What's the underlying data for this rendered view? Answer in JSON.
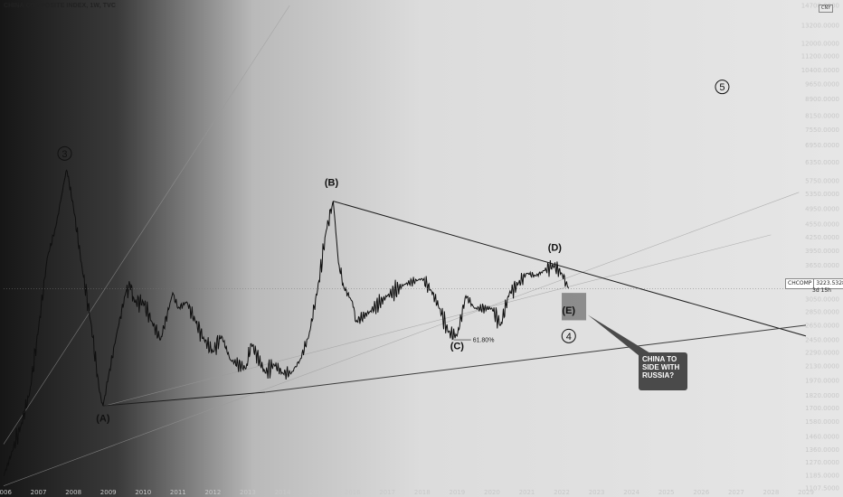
{
  "header": {
    "title": "CHINA COMPOSITE INDEX, 1W, TVC"
  },
  "price_tag": {
    "symbol": "CHCOMP",
    "value": "3223.5328",
    "countdown": "3d 15h"
  },
  "unit_badge": "CNY",
  "callout": {
    "lines": [
      "CHINA TO",
      "SIDE WITH",
      "RUSSIA?"
    ]
  },
  "fib_label": "61.80%",
  "wave_labels": {
    "A": "(A)",
    "B": "(B)",
    "C": "(C)",
    "D": "(D)",
    "E": "(E)",
    "w3": "3",
    "w4": "4",
    "w5": "5"
  },
  "colors": {
    "background_left": "#191919",
    "background_right": "#e4e4e4",
    "price_line": "#0f0f0f",
    "trendline": "#1e1e1e",
    "projection_box": "#7e7e7e",
    "callout_bg": "#4a4a4a"
  },
  "chart_data": {
    "type": "line",
    "title": "CHINA COMPOSITE INDEX, 1W, TVC",
    "y_scale": "log",
    "ylim": [
      1107.5,
      14700
    ],
    "x_range": [
      2006,
      2029
    ],
    "x_ticks": [
      "2006",
      "2007",
      "2008",
      "2009",
      "2010",
      "2011",
      "2012",
      "2013",
      "2014",
      "2015",
      "2016",
      "2017",
      "2018",
      "2019",
      "2020",
      "2021",
      "2022",
      "2023",
      "2024",
      "2025",
      "2026",
      "2027",
      "2028",
      "2029"
    ],
    "y_ticks": [
      "14700.0000",
      "13200.0000",
      "12000.0000",
      "11200.0000",
      "10400.0000",
      "9650.0000",
      "8900.0000",
      "8150.0000",
      "7550.0000",
      "6950.0000",
      "6350.0000",
      "5750.0000",
      "5350.0000",
      "4950.0000",
      "4550.0000",
      "4250.0000",
      "3950.0000",
      "3650.0000",
      "3350.0000",
      "3050.0000",
      "2850.0000",
      "2650.0000",
      "2450.0000",
      "2290.0000",
      "2130.0000",
      "1970.0000",
      "1820.0000",
      "1700.0000",
      "1580.0000",
      "1460.0000",
      "1360.0000",
      "1270.0000",
      "1185.0000",
      "1107.5000"
    ],
    "series": [
      {
        "x": [
          2006.0,
          2006.25,
          2006.5,
          2006.75,
          2007.0,
          2007.25,
          2007.5,
          2007.75,
          2007.82,
          2008.0,
          2008.25,
          2008.5,
          2008.75,
          2008.85,
          2009.0,
          2009.25,
          2009.5,
          2009.62,
          2009.75,
          2010.0,
          2010.25,
          2010.5,
          2010.85,
          2011.0,
          2011.25,
          2011.5,
          2011.75,
          2012.0,
          2012.25,
          2012.5,
          2012.95,
          2013.1,
          2013.5,
          2013.75,
          2014.0,
          2014.25,
          2014.5,
          2014.75,
          2015.0,
          2015.25,
          2015.45,
          2015.6,
          2015.75,
          2016.0,
          2016.1,
          2016.5,
          2017.0,
          2017.5,
          2018.0,
          2018.25,
          2018.5,
          2018.75,
          2019.0,
          2019.25,
          2019.5,
          2020.0,
          2020.25,
          2020.5,
          2020.75,
          2021.0,
          2021.25,
          2021.5,
          2021.75,
          2022.0,
          2022.2
        ],
        "y": [
          1180,
          1350,
          1550,
          1850,
          2600,
          3800,
          4500,
          5800,
          6050,
          5000,
          3600,
          2700,
          1850,
          1720,
          2000,
          2550,
          3150,
          3300,
          3000,
          3000,
          2700,
          2450,
          3150,
          2900,
          3000,
          2700,
          2450,
          2300,
          2500,
          2200,
          2100,
          2400,
          2050,
          2150,
          2050,
          2050,
          2200,
          2500,
          3200,
          4400,
          5150,
          3700,
          3250,
          3000,
          2700,
          2850,
          3100,
          3300,
          3400,
          3200,
          2900,
          2550,
          2500,
          3100,
          2900,
          2900,
          2650,
          3150,
          3300,
          3500,
          3450,
          3550,
          3650,
          3500,
          3223.53
        ]
      }
    ],
    "fib_ratio": "61.80%"
  }
}
